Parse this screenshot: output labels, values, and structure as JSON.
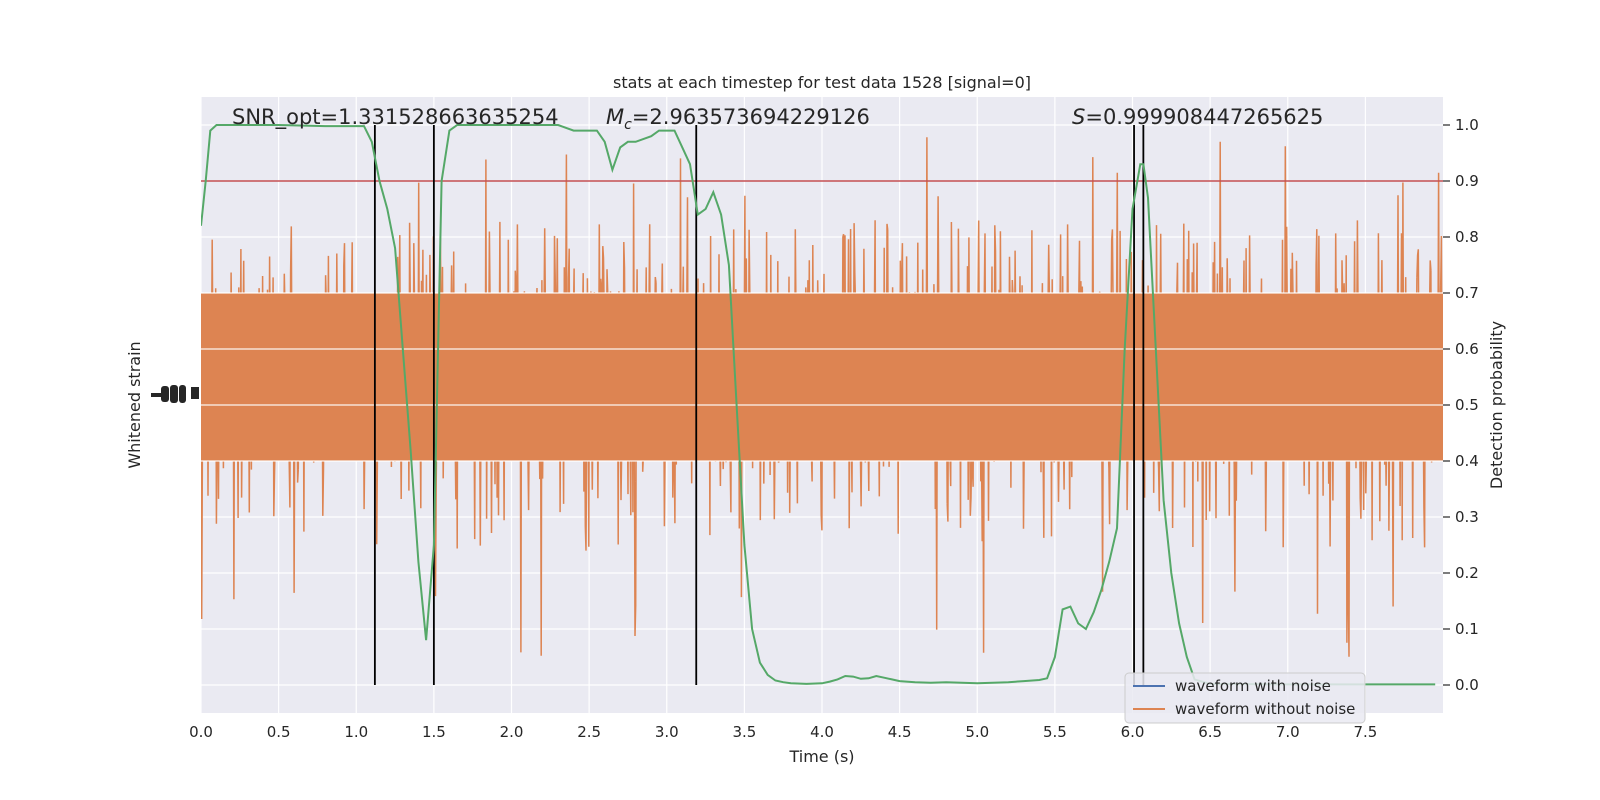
{
  "chart_data": {
    "type": "line",
    "title": "stats at each timestep for test data 1528 [signal=0]",
    "xlabel": "Time (s)",
    "ylabel_left": "Whitened strain",
    "ylabel_right": "Detection probability",
    "xlim": [
      0,
      8.0
    ],
    "ylim_right": [
      -0.05,
      1.05
    ],
    "x_ticks": [
      "0.0",
      "0.5",
      "1.0",
      "1.5",
      "2.0",
      "2.5",
      "3.0",
      "3.5",
      "4.0",
      "4.5",
      "5.0",
      "5.5",
      "6.0",
      "6.5",
      "7.0",
      "7.5"
    ],
    "x_tick_values": [
      0,
      0.5,
      1.0,
      1.5,
      2.0,
      2.5,
      3.0,
      3.5,
      4.0,
      4.5,
      5.0,
      5.5,
      6.0,
      6.5,
      7.0,
      7.5
    ],
    "y_right_ticks": [
      "0.0",
      "0.1",
      "0.2",
      "0.3",
      "0.4",
      "0.5",
      "0.6",
      "0.7",
      "0.8",
      "0.9",
      "1.0"
    ],
    "y_right_tick_values": [
      0.0,
      0.1,
      0.2,
      0.3,
      0.4,
      0.5,
      0.6,
      0.7,
      0.8,
      0.9,
      1.0
    ],
    "annotations": {
      "snr": "SNR_opt=1.331528663635254",
      "mc_symbol": "M",
      "mc_sub": "c",
      "mc_value": "=2.963573694229126",
      "s_symbol": "S",
      "s_value": "=0.999908447265625"
    },
    "threshold": 0.9,
    "vertical_lines_x": [
      1.12,
      1.5,
      3.19,
      6.01,
      6.07
    ],
    "noise_band": {
      "inner_min": 0.4,
      "inner_max": 0.7,
      "outer_min": 0.05,
      "outer_max": 0.98
    },
    "series": [
      {
        "name": "waveform with noise",
        "color": "#4c72b0",
        "values": []
      },
      {
        "name": "waveform without noise",
        "color": "#dd8452"
      },
      {
        "color": "#55a868",
        "x": [
          0,
          0.03,
          0.06,
          0.1,
          0.2,
          0.5,
          0.8,
          1.0,
          1.05,
          1.1,
          1.15,
          1.2,
          1.25,
          1.3,
          1.35,
          1.4,
          1.45,
          1.5,
          1.55,
          1.6,
          1.65,
          1.7,
          2.0,
          2.3,
          2.4,
          2.45,
          2.5,
          2.55,
          2.6,
          2.65,
          2.7,
          2.75,
          2.8,
          2.9,
          2.95,
          3.0,
          3.05,
          3.1,
          3.15,
          3.2,
          3.25,
          3.3,
          3.35,
          3.4,
          3.45,
          3.5,
          3.55,
          3.6,
          3.65,
          3.7,
          3.75,
          3.8,
          3.9,
          4.0,
          4.05,
          4.1,
          4.15,
          4.2,
          4.25,
          4.3,
          4.35,
          4.4,
          4.45,
          4.5,
          4.6,
          4.7,
          4.8,
          4.9,
          5.0,
          5.2,
          5.3,
          5.4,
          5.45,
          5.5,
          5.55,
          5.6,
          5.65,
          5.7,
          5.75,
          5.8,
          5.85,
          5.9,
          5.95,
          6.0,
          6.05,
          6.07,
          6.1,
          6.15,
          6.2,
          6.25,
          6.3,
          6.35,
          6.4,
          6.5,
          7.0,
          7.5,
          7.95
        ],
        "values": [
          0.82,
          0.9,
          0.99,
          1.0,
          1.0,
          1.0,
          0.998,
          0.998,
          0.998,
          0.97,
          0.9,
          0.85,
          0.78,
          0.6,
          0.42,
          0.22,
          0.08,
          0.25,
          0.9,
          0.99,
          1.0,
          1.0,
          1.0,
          1.0,
          0.99,
          0.99,
          0.99,
          0.99,
          0.97,
          0.92,
          0.96,
          0.97,
          0.97,
          0.98,
          0.99,
          0.99,
          0.99,
          0.96,
          0.93,
          0.84,
          0.85,
          0.88,
          0.84,
          0.75,
          0.5,
          0.25,
          0.1,
          0.04,
          0.018,
          0.008,
          0.005,
          0.003,
          0.002,
          0.003,
          0.006,
          0.01,
          0.016,
          0.015,
          0.011,
          0.012,
          0.016,
          0.013,
          0.01,
          0.007,
          0.005,
          0.004,
          0.005,
          0.004,
          0.003,
          0.005,
          0.007,
          0.009,
          0.012,
          0.05,
          0.135,
          0.14,
          0.11,
          0.1,
          0.13,
          0.17,
          0.22,
          0.28,
          0.6,
          0.85,
          0.93,
          0.93,
          0.87,
          0.6,
          0.33,
          0.2,
          0.11,
          0.05,
          0.01,
          0.002,
          0.001,
          0.001,
          0.001
        ]
      }
    ],
    "legend_position": "lower-right",
    "grid": true
  }
}
